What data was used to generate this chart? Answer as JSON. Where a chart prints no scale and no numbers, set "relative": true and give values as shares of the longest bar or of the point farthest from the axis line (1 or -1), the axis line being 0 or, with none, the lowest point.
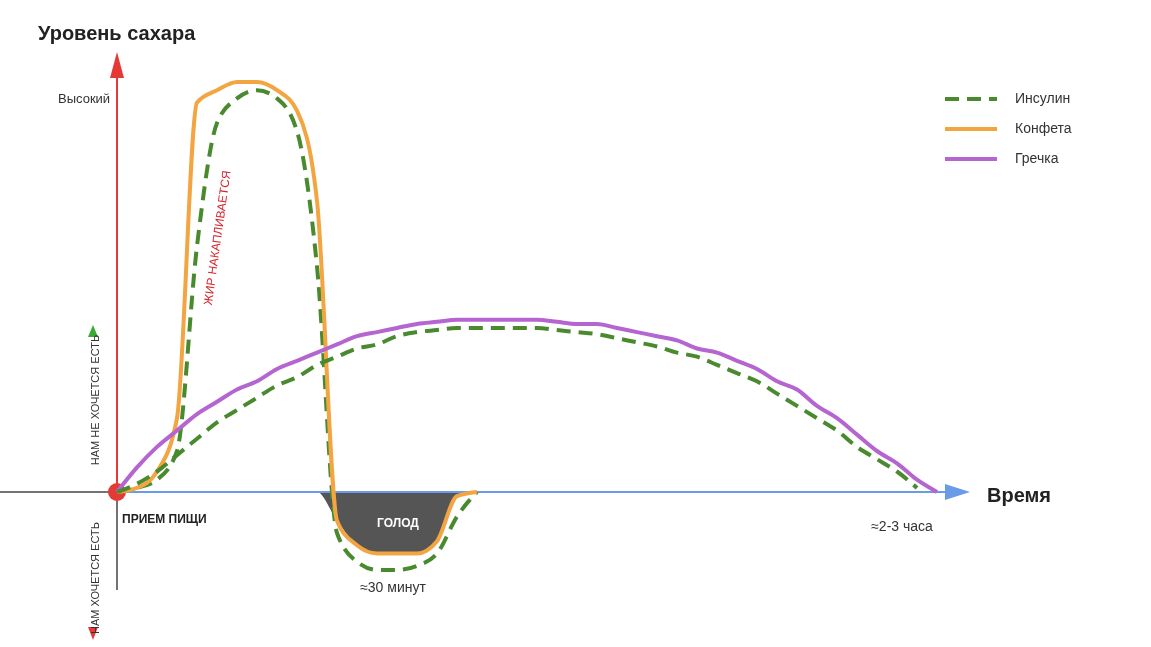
{
  "chart_data": {
    "type": "line",
    "relative": true,
    "ylabel": "Уровень сахара",
    "xlabel": "Время",
    "legend": "top right",
    "line_style": "solid",
    "marker": "none",
    "categories": [
      null,
      null,
      null,
      null,
      null,
      null,
      null,
      null,
      null,
      null,
      null,
      null,
      null,
      null,
      null,
      null,
      null,
      null,
      null,
      null,
      null,
      null,
      null,
      null,
      null,
      null,
      null,
      null,
      null,
      null,
      null,
      null,
      null,
      null,
      null,
      null,
      null,
      null,
      null,
      null,
      null,
      null
    ],
    "series": [
      {
        "name": "Инсулин",
        "color": "#4a8a2e",
        "line_style": "dashed",
        "values": [
          0,
          0.01,
          0.03,
          0.1,
          0.6,
          0.9,
          0.96,
          0.98,
          0.96,
          0.88,
          0.55,
          -0.1,
          -0.17,
          -0.19,
          -0.19,
          -0.18,
          -0.15,
          -0.06,
          0,
          null,
          null,
          null,
          null,
          null,
          null,
          null,
          null,
          null,
          null,
          null,
          null,
          null,
          null,
          null,
          null,
          null,
          null,
          null,
          null,
          null,
          null,
          null
        ]
      },
      {
        "name": "Конфета",
        "color": "#f2a541",
        "values": [
          0,
          0.01,
          0.05,
          0.18,
          0.95,
          0.98,
          1,
          1,
          0.98,
          0.93,
          0.71,
          -0.07,
          -0.13,
          -0.15,
          -0.15,
          -0.15,
          -0.12,
          -0.01,
          0,
          null,
          null,
          null,
          null,
          null,
          null,
          null,
          null,
          null,
          null,
          null,
          null,
          null,
          null,
          null,
          null,
          null,
          null,
          null,
          null,
          null,
          null,
          null
        ]
      },
      {
        "name": "Гречка",
        "color": "#b565d0",
        "values": [
          0,
          0.06,
          0.11,
          0.15,
          0.19,
          0.22,
          0.25,
          0.27,
          0.3,
          0.32,
          0.34,
          0.36,
          0.38,
          0.39,
          0.4,
          0.41,
          0.415,
          0.42,
          0.42,
          0.42,
          0.42,
          0.42,
          0.415,
          0.41,
          0.41,
          0.4,
          0.39,
          0.38,
          0.37,
          0.35,
          0.34,
          0.32,
          0.3,
          0.27,
          0.25,
          0.21,
          0.18,
          0.14,
          0.1,
          0.07,
          0.03,
          0
        ]
      },
      {
        "color": "#4a8a2e",
        "line_style": "dashed",
        "values": [
          0,
          0.02,
          0.05,
          0.09,
          0.13,
          0.17,
          0.2,
          0.23,
          0.26,
          0.28,
          0.31,
          0.33,
          0.35,
          0.36,
          0.38,
          0.39,
          0.395,
          0.4,
          0.4,
          0.4,
          0.4,
          0.4,
          0.395,
          0.39,
          0.385,
          0.375,
          0.365,
          0.355,
          0.34,
          0.33,
          0.31,
          0.29,
          0.27,
          0.24,
          0.21,
          0.18,
          0.15,
          0.11,
          0.08,
          0.05,
          0.01,
          null
        ]
      }
    ],
    "ref_lines": [
      {
        "axis": "y",
        "value": 0,
        "color": "#6a9be8"
      }
    ],
    "annotations": [
      "Высокий",
      "НАМ НЕ ХОЧЕТСЯ ЕСТЬ",
      "НАМ ХОЧЕТСЯ ЕСТЬ",
      "ПРИЕМ ПИЩИ",
      "ЖИР НАКАПЛИВАЕТСЯ",
      "ГОЛОД",
      "≈30 минут",
      "≈2-3 часа"
    ]
  }
}
